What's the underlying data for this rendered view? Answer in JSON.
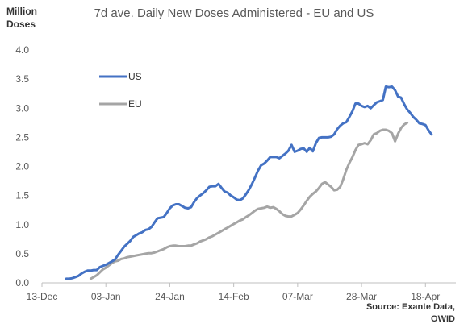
{
  "chart_data": {
    "type": "line",
    "title": "7d ave. Daily New Doses Administered - EU and US",
    "ylabel_line1": "Million",
    "ylabel_line2": "Doses",
    "ylim": [
      0,
      4.0
    ],
    "yticks": [
      "0.0",
      "0.5",
      "1.0",
      "1.5",
      "2.0",
      "2.5",
      "3.0",
      "3.5",
      "4.0"
    ],
    "xlim": [
      0,
      136
    ],
    "xticks": [
      {
        "label": "13-Dec",
        "x": 0
      },
      {
        "label": "03-Jan",
        "x": 21
      },
      {
        "label": "24-Jan",
        "x": 42
      },
      {
        "label": "14-Feb",
        "x": 63
      },
      {
        "label": "07-Mar",
        "x": 84
      },
      {
        "label": "28-Mar",
        "x": 105
      },
      {
        "label": "18-Apr",
        "x": 126
      }
    ],
    "legend_position": "top-left",
    "grid": false,
    "series": [
      {
        "name": "US",
        "color": "#4472C4",
        "points": [
          [
            8,
            0.07
          ],
          [
            9,
            0.07
          ],
          [
            10,
            0.08
          ],
          [
            11,
            0.1
          ],
          [
            12,
            0.12
          ],
          [
            13,
            0.16
          ],
          [
            14,
            0.19
          ],
          [
            15,
            0.21
          ],
          [
            16,
            0.21
          ],
          [
            17,
            0.22
          ],
          [
            18,
            0.22
          ],
          [
            19,
            0.27
          ],
          [
            20,
            0.29
          ],
          [
            21,
            0.31
          ],
          [
            22,
            0.34
          ],
          [
            23,
            0.37
          ],
          [
            24,
            0.4
          ],
          [
            25,
            0.48
          ],
          [
            26,
            0.55
          ],
          [
            27,
            0.62
          ],
          [
            28,
            0.67
          ],
          [
            29,
            0.72
          ],
          [
            30,
            0.79
          ],
          [
            31,
            0.82
          ],
          [
            32,
            0.85
          ],
          [
            33,
            0.87
          ],
          [
            34,
            0.91
          ],
          [
            35,
            0.92
          ],
          [
            36,
            0.96
          ],
          [
            37,
            1.04
          ],
          [
            38,
            1.11
          ],
          [
            39,
            1.12
          ],
          [
            40,
            1.13
          ],
          [
            41,
            1.2
          ],
          [
            42,
            1.28
          ],
          [
            43,
            1.33
          ],
          [
            44,
            1.35
          ],
          [
            45,
            1.35
          ],
          [
            46,
            1.32
          ],
          [
            47,
            1.29
          ],
          [
            48,
            1.28
          ],
          [
            49,
            1.3
          ],
          [
            50,
            1.39
          ],
          [
            51,
            1.46
          ],
          [
            52,
            1.5
          ],
          [
            53,
            1.54
          ],
          [
            54,
            1.59
          ],
          [
            55,
            1.65
          ],
          [
            56,
            1.66
          ],
          [
            57,
            1.66
          ],
          [
            58,
            1.7
          ],
          [
            59,
            1.63
          ],
          [
            60,
            1.57
          ],
          [
            61,
            1.55
          ],
          [
            62,
            1.5
          ],
          [
            63,
            1.47
          ],
          [
            64,
            1.43
          ],
          [
            65,
            1.42
          ],
          [
            66,
            1.45
          ],
          [
            67,
            1.52
          ],
          [
            68,
            1.6
          ],
          [
            69,
            1.7
          ],
          [
            70,
            1.81
          ],
          [
            71,
            1.93
          ],
          [
            72,
            2.02
          ],
          [
            73,
            2.05
          ],
          [
            74,
            2.1
          ],
          [
            75,
            2.16
          ],
          [
            76,
            2.16
          ],
          [
            77,
            2.16
          ],
          [
            78,
            2.14
          ],
          [
            79,
            2.18
          ],
          [
            80,
            2.22
          ],
          [
            81,
            2.27
          ],
          [
            82,
            2.37
          ],
          [
            83,
            2.25
          ],
          [
            84,
            2.27
          ],
          [
            85,
            2.3
          ],
          [
            86,
            2.31
          ],
          [
            87,
            2.25
          ],
          [
            88,
            2.32
          ],
          [
            89,
            2.26
          ],
          [
            90,
            2.4
          ],
          [
            91,
            2.49
          ],
          [
            92,
            2.5
          ],
          [
            93,
            2.5
          ],
          [
            94,
            2.5
          ],
          [
            95,
            2.51
          ],
          [
            96,
            2.55
          ],
          [
            97,
            2.64
          ],
          [
            98,
            2.7
          ],
          [
            99,
            2.74
          ],
          [
            100,
            2.76
          ],
          [
            101,
            2.85
          ],
          [
            102,
            2.95
          ],
          [
            103,
            3.08
          ],
          [
            104,
            3.08
          ],
          [
            105,
            3.04
          ],
          [
            106,
            3.02
          ],
          [
            107,
            3.04
          ],
          [
            108,
            3.0
          ],
          [
            109,
            3.05
          ],
          [
            110,
            3.1
          ],
          [
            111,
            3.12
          ],
          [
            112,
            3.14
          ],
          [
            113,
            3.37
          ],
          [
            114,
            3.36
          ],
          [
            115,
            3.37
          ],
          [
            116,
            3.31
          ],
          [
            117,
            3.2
          ],
          [
            118,
            3.18
          ],
          [
            119,
            3.07
          ],
          [
            120,
            2.98
          ],
          [
            121,
            2.92
          ],
          [
            122,
            2.85
          ],
          [
            123,
            2.8
          ],
          [
            124,
            2.74
          ],
          [
            125,
            2.73
          ],
          [
            126,
            2.71
          ],
          [
            127,
            2.62
          ],
          [
            128,
            2.55
          ]
        ]
      },
      {
        "name": "EU",
        "color": "#A5A5A5",
        "points": [
          [
            16,
            0.07
          ],
          [
            17,
            0.1
          ],
          [
            18,
            0.13
          ],
          [
            19,
            0.18
          ],
          [
            20,
            0.23
          ],
          [
            21,
            0.26
          ],
          [
            22,
            0.3
          ],
          [
            23,
            0.34
          ],
          [
            24,
            0.37
          ],
          [
            25,
            0.38
          ],
          [
            26,
            0.41
          ],
          [
            27,
            0.42
          ],
          [
            28,
            0.44
          ],
          [
            29,
            0.45
          ],
          [
            30,
            0.46
          ],
          [
            31,
            0.47
          ],
          [
            32,
            0.48
          ],
          [
            33,
            0.49
          ],
          [
            34,
            0.5
          ],
          [
            35,
            0.51
          ],
          [
            36,
            0.51
          ],
          [
            37,
            0.52
          ],
          [
            38,
            0.54
          ],
          [
            39,
            0.56
          ],
          [
            40,
            0.58
          ],
          [
            41,
            0.61
          ],
          [
            42,
            0.63
          ],
          [
            43,
            0.64
          ],
          [
            44,
            0.64
          ],
          [
            45,
            0.63
          ],
          [
            46,
            0.63
          ],
          [
            47,
            0.63
          ],
          [
            48,
            0.64
          ],
          [
            49,
            0.64
          ],
          [
            50,
            0.66
          ],
          [
            51,
            0.68
          ],
          [
            52,
            0.71
          ],
          [
            53,
            0.73
          ],
          [
            54,
            0.75
          ],
          [
            55,
            0.78
          ],
          [
            56,
            0.8
          ],
          [
            57,
            0.83
          ],
          [
            58,
            0.86
          ],
          [
            59,
            0.89
          ],
          [
            60,
            0.92
          ],
          [
            61,
            0.95
          ],
          [
            62,
            0.98
          ],
          [
            63,
            1.01
          ],
          [
            64,
            1.04
          ],
          [
            65,
            1.07
          ],
          [
            66,
            1.09
          ],
          [
            67,
            1.13
          ],
          [
            68,
            1.16
          ],
          [
            69,
            1.2
          ],
          [
            70,
            1.24
          ],
          [
            71,
            1.27
          ],
          [
            72,
            1.28
          ],
          [
            73,
            1.29
          ],
          [
            74,
            1.31
          ],
          [
            75,
            1.29
          ],
          [
            76,
            1.3
          ],
          [
            77,
            1.27
          ],
          [
            78,
            1.23
          ],
          [
            79,
            1.18
          ],
          [
            80,
            1.15
          ],
          [
            81,
            1.14
          ],
          [
            82,
            1.14
          ],
          [
            83,
            1.17
          ],
          [
            84,
            1.2
          ],
          [
            85,
            1.26
          ],
          [
            86,
            1.33
          ],
          [
            87,
            1.41
          ],
          [
            88,
            1.48
          ],
          [
            89,
            1.53
          ],
          [
            90,
            1.57
          ],
          [
            91,
            1.63
          ],
          [
            92,
            1.7
          ],
          [
            93,
            1.73
          ],
          [
            94,
            1.69
          ],
          [
            95,
            1.65
          ],
          [
            96,
            1.59
          ],
          [
            97,
            1.6
          ],
          [
            98,
            1.65
          ],
          [
            99,
            1.78
          ],
          [
            100,
            1.94
          ],
          [
            101,
            2.06
          ],
          [
            102,
            2.16
          ],
          [
            103,
            2.28
          ],
          [
            104,
            2.37
          ],
          [
            105,
            2.38
          ],
          [
            106,
            2.4
          ],
          [
            107,
            2.38
          ],
          [
            108,
            2.45
          ],
          [
            109,
            2.55
          ],
          [
            110,
            2.57
          ],
          [
            111,
            2.61
          ],
          [
            112,
            2.63
          ],
          [
            113,
            2.63
          ],
          [
            114,
            2.61
          ],
          [
            115,
            2.57
          ],
          [
            116,
            2.43
          ],
          [
            117,
            2.56
          ],
          [
            118,
            2.66
          ],
          [
            119,
            2.72
          ],
          [
            120,
            2.75
          ]
        ]
      }
    ],
    "source_line1": "Source: Exante Data,",
    "source_line2": "OWID"
  }
}
